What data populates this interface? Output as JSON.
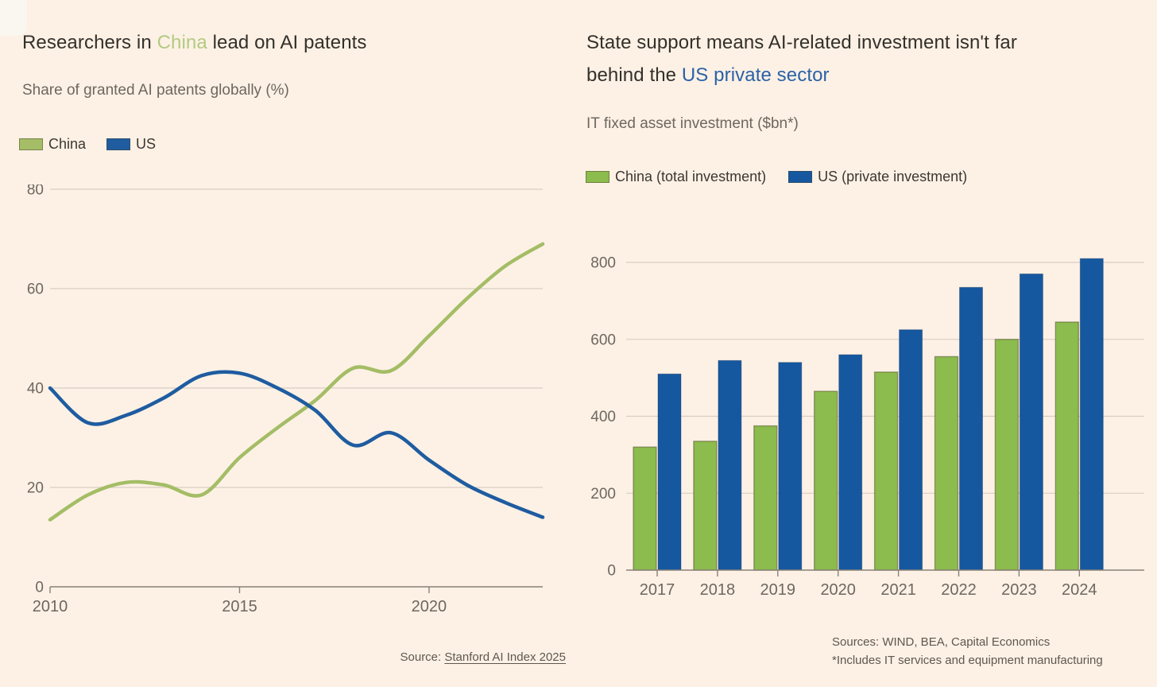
{
  "colors": {
    "background": "#fdf1e5",
    "title_green": "#b3ca83",
    "title_blue": "#2b62a7",
    "line_green": "#a4bd66",
    "line_blue": "#1f5ca0",
    "bar_green": "#8cbb4e",
    "bar_blue": "#1558a0",
    "grid": "#d8cec3",
    "axis": "#8a8177",
    "text_dark": "#33302b",
    "text_muted": "#6e675f"
  },
  "left_panel": {
    "title_pre": "Researchers in ",
    "title_highlight": "China",
    "title_post": " lead on AI patents",
    "subtitle": "Share of granted AI patents globally (%)",
    "source_prefix": "Source: ",
    "source_link": "Stanford AI Index 2025"
  },
  "right_panel": {
    "title_pre": "State support means AI-related investment isn't far behind the ",
    "title_highlight": "US private sector",
    "title_post": "",
    "subtitle": "IT fixed asset investment ($bn*)",
    "sources_line1": "Sources: WIND, BEA, Capital Economics",
    "sources_line2": "*Includes IT services and equipment manufacturing"
  },
  "chart_data": [
    {
      "id": "ai-patents-share",
      "type": "line",
      "title": "Researchers in China lead on AI patents",
      "subtitle": "Share of granted AI patents globally (%)",
      "x": [
        2010,
        2011,
        2012,
        2013,
        2014,
        2015,
        2016,
        2017,
        2018,
        2019,
        2020,
        2021,
        2022,
        2023
      ],
      "series": [
        {
          "name": "China",
          "color_key": "line_green",
          "values": [
            13.5,
            18.5,
            21,
            20.5,
            18.5,
            26,
            32,
            37.5,
            44,
            43.5,
            50.5,
            58,
            64.5,
            69
          ]
        },
        {
          "name": "US",
          "color_key": "line_blue",
          "values": [
            40,
            33,
            34.5,
            38,
            42.5,
            43,
            40,
            35.5,
            28.5,
            31,
            25.5,
            20.5,
            17,
            14
          ]
        }
      ],
      "ylim": [
        0,
        80
      ],
      "yticks": [
        0,
        20,
        40,
        60,
        80
      ],
      "xticks": [
        2010,
        2015,
        2020
      ],
      "grid": "horizontal",
      "legend_position": "top"
    },
    {
      "id": "it-fixed-asset-investment",
      "type": "bar",
      "title": "State support means AI-related investment isn't far behind the US private sector",
      "subtitle": "IT fixed asset investment ($bn*)",
      "categories": [
        "2017",
        "2018",
        "2019",
        "2020",
        "2021",
        "2022",
        "2023",
        "2024"
      ],
      "series": [
        {
          "name": "China (total investment)",
          "color_key": "bar_green",
          "values": [
            320,
            335,
            375,
            465,
            515,
            555,
            600,
            645
          ]
        },
        {
          "name": "US (private investment)",
          "color_key": "bar_blue",
          "values": [
            510,
            545,
            540,
            560,
            625,
            735,
            770,
            810
          ]
        }
      ],
      "ylim": [
        0,
        850
      ],
      "yticks": [
        0,
        200,
        400,
        600,
        800
      ],
      "grid": "horizontal",
      "legend_position": "top"
    }
  ]
}
